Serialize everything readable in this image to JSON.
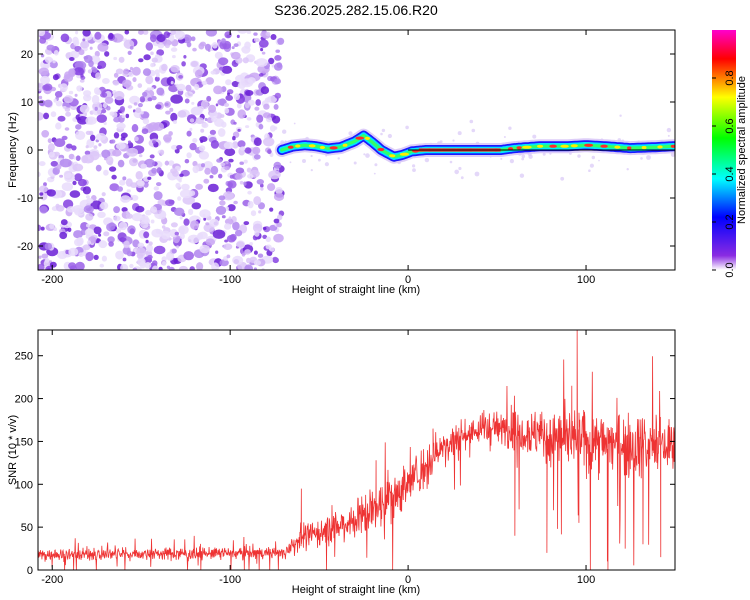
{
  "title": "S236.2025.282.15.06.R20",
  "colors": {
    "snr_line": "#ee3333",
    "trace_core": "#ff2a2a",
    "axis": "#000000"
  },
  "chart_data": [
    {
      "type": "heatmap",
      "xlabel": "Height of straight line (km)",
      "ylabel": "Frequency (Hz)",
      "xlim": [
        -208,
        150
      ],
      "ylim": [
        -25,
        25
      ],
      "xticks": [
        {
          "v": -200,
          "label": "-200"
        },
        {
          "v": -100,
          "label": "-100"
        },
        {
          "v": 0,
          "label": "0"
        },
        {
          "v": 100,
          "label": "100"
        }
      ],
      "yticks": [
        {
          "v": 20,
          "label": "20"
        },
        {
          "v": 10,
          "label": "10"
        },
        {
          "v": 0,
          "label": "0"
        },
        {
          "v": -10,
          "label": "-10"
        },
        {
          "v": -20,
          "label": "-20"
        }
      ],
      "noise_region_x": [
        -208,
        -71
      ],
      "trace_nodes": [
        [
          -71,
          0
        ],
        [
          -65,
          0.7
        ],
        [
          -58,
          1.0
        ],
        [
          -52,
          0.8
        ],
        [
          -45,
          0.3
        ],
        [
          -38,
          0.6
        ],
        [
          -30,
          1.8
        ],
        [
          -25,
          3.0
        ],
        [
          -20,
          1.6
        ],
        [
          -15,
          0
        ],
        [
          -8,
          -1.4
        ],
        [
          -3,
          -1.0
        ],
        [
          2,
          -0.3
        ],
        [
          10,
          0
        ],
        [
          30,
          0
        ],
        [
          52,
          0
        ],
        [
          60,
          0.4
        ],
        [
          75,
          0.8
        ],
        [
          90,
          0.8
        ],
        [
          100,
          1.0
        ],
        [
          110,
          0.8
        ],
        [
          125,
          0.4
        ],
        [
          140,
          0.6
        ],
        [
          150,
          0.8
        ]
      ],
      "straight_line": {
        "x": [
          0,
          150
        ],
        "y": 0
      },
      "colorbar": {
        "label": "Normalized spectral amplitude",
        "range": [
          0,
          1
        ],
        "ticks": [
          {
            "v": 0.0,
            "label": "0.0"
          },
          {
            "v": 0.2,
            "label": "0.2"
          },
          {
            "v": 0.4,
            "label": "0.4"
          },
          {
            "v": 0.6,
            "label": "0.6"
          },
          {
            "v": 0.8,
            "label": "0.8"
          }
        ],
        "stops": [
          "#ffffff",
          "#8a2be2",
          "#0000ff",
          "#00ffff",
          "#00ff00",
          "#ffff00",
          "#ff0000",
          "#ff00cc"
        ]
      }
    },
    {
      "type": "line",
      "xlabel": "Height of straight line (km)",
      "ylabel": "SNR (10 * v/v)",
      "xlim": [
        -208,
        150
      ],
      "ylim": [
        0,
        280
      ],
      "xticks": [
        {
          "v": -200,
          "label": "-200"
        },
        {
          "v": -100,
          "label": "-100"
        },
        {
          "v": 0,
          "label": "0"
        },
        {
          "v": 100,
          "label": "100"
        }
      ],
      "yticks": [
        {
          "v": 0,
          "label": "0"
        },
        {
          "v": 50,
          "label": "50"
        },
        {
          "v": 100,
          "label": "100"
        },
        {
          "v": 150,
          "label": "150"
        },
        {
          "v": 200,
          "label": "200"
        },
        {
          "v": 250,
          "label": "250"
        }
      ],
      "envelope": [
        {
          "x": -208,
          "mean": 18,
          "spread": 8
        },
        {
          "x": -70,
          "mean": 20,
          "spread": 8
        },
        {
          "x": -60,
          "mean": 38,
          "spread": 18
        },
        {
          "x": -40,
          "mean": 50,
          "spread": 20
        },
        {
          "x": -20,
          "mean": 70,
          "spread": 28
        },
        {
          "x": 0,
          "mean": 100,
          "spread": 30
        },
        {
          "x": 20,
          "mean": 145,
          "spread": 28
        },
        {
          "x": 40,
          "mean": 165,
          "spread": 22
        },
        {
          "x": 60,
          "mean": 165,
          "spread": 25
        },
        {
          "x": 80,
          "mean": 155,
          "spread": 35
        },
        {
          "x": 100,
          "mean": 150,
          "spread": 40
        },
        {
          "x": 150,
          "mean": 145,
          "spread": 40
        }
      ],
      "spikes": [
        {
          "x": -60,
          "y": 95
        },
        {
          "x": -18,
          "y": 128
        },
        {
          "x": 14,
          "y": 165
        },
        {
          "x": 95,
          "y": 280
        },
        {
          "x": 92,
          "y": 215
        }
      ],
      "dips": [
        {
          "x": 60,
          "y": 40
        },
        {
          "x": 78,
          "y": 20
        },
        {
          "x": 96,
          "y": 55
        },
        {
          "x": 112,
          "y": 10
        },
        {
          "x": 122,
          "y": 25
        },
        {
          "x": 132,
          "y": 30
        },
        {
          "x": 142,
          "y": 15
        },
        {
          "x": 84,
          "y": 48
        }
      ]
    }
  ]
}
